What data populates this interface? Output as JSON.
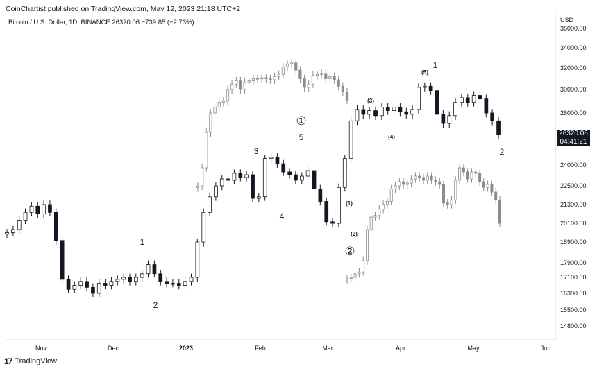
{
  "header": {
    "published": "CoinChartist published on TradingView.com, May 12, 2023 21:18 UTC+2",
    "symbol_line": "Bitcoin / U.S. Dollar, 1D, BINANCE  26320.06  −739.85 (−2.73%)"
  },
  "branding": {
    "logo_text": "TradingView",
    "logo_icon": "tradingview-logo-icon"
  },
  "price_badge": {
    "price": "26320.06",
    "countdown": "04:41:21"
  },
  "colors": {
    "candle": "#131722",
    "fractal": "#8c8c8c",
    "axis_text": "#131722",
    "grid": "#e6e6e6"
  },
  "chart_data": {
    "type": "candlestick",
    "title": "Bitcoin / U.S. Dollar, 1D, BINANCE",
    "currency_label": "USD",
    "y_ticks": [
      "36000.00",
      "34000.00",
      "32000.00",
      "30000.00",
      "28000.00",
      "24000.00",
      "22500.00",
      "21300.00",
      "20100.00",
      "18900.00",
      "17900.00",
      "17100.00",
      "16300.00",
      "15500.00",
      "14800.00"
    ],
    "x_ticks": [
      "Nov",
      "Dec",
      "2023",
      "Feb",
      "Mar",
      "Apr",
      "May",
      "Jun"
    ],
    "main_series": {
      "name": "BTCUSD daily",
      "closes_approx": [
        19500,
        19700,
        20300,
        20800,
        21200,
        20700,
        21300,
        20800,
        19000,
        17000,
        16500,
        16700,
        16900,
        16600,
        16300,
        16800,
        16700,
        16900,
        17000,
        17100,
        16900,
        17100,
        17300,
        17800,
        17300,
        16900,
        16800,
        16800,
        16700,
        16900,
        17100,
        18900,
        20800,
        21800,
        22500,
        23000,
        22900,
        23400,
        23100,
        23300,
        21700,
        21800,
        24500,
        24600,
        24100,
        23500,
        23300,
        22900,
        23200,
        23600,
        22300,
        21500,
        20200,
        20100,
        22400,
        24500,
        27400,
        28300,
        27900,
        28200,
        27800,
        28500,
        28200,
        28500,
        28100,
        27900,
        28300,
        30200,
        30300,
        29900,
        27900,
        27200,
        27800,
        28900,
        29300,
        28900,
        29500,
        29200,
        28000,
        27400,
        26320
      ]
    },
    "fractal_1": {
      "label": "①",
      "closes_approx": [
        22500,
        23800,
        26500,
        28000,
        28500,
        28900,
        29000,
        30000,
        30500,
        30800,
        30000,
        30700,
        30800,
        31000,
        31000,
        31100,
        31000,
        30900,
        31200,
        31400,
        32100,
        32400,
        32500,
        31800,
        31000,
        30200,
        30500,
        31300,
        31400,
        31500,
        31000,
        31200,
        30900,
        30300,
        29800,
        29100
      ]
    },
    "fractal_2": {
      "label": "②",
      "closes_approx": [
        17050,
        17100,
        17300,
        17400,
        18000,
        19700,
        20500,
        20600,
        21000,
        21300,
        21500,
        22300,
        22500,
        22800,
        22600,
        22700,
        23000,
        23200,
        23100,
        22900,
        23200,
        22900,
        22800,
        22600,
        21400,
        21300,
        21600,
        22900,
        23800,
        23500,
        23000,
        23500,
        23400,
        22800,
        22400,
        22600,
        22100,
        21600,
        20100
      ]
    },
    "wave_labels": [
      {
        "text": "1",
        "date": "Dec 14",
        "price": 18900
      },
      {
        "text": "2",
        "date": "Dec 19",
        "price": 15700
      },
      {
        "text": "3",
        "date": "Jan 29",
        "price": 24700
      },
      {
        "text": "4",
        "date": "Feb 8",
        "price": 21200
      },
      {
        "text": "5",
        "date": "Feb 20",
        "price": 25200
      },
      {
        "text": "(1)",
        "date": "Mar 11",
        "price": 21300
      },
      {
        "text": "(2)",
        "date": "Mar 12",
        "price": 19600
      },
      {
        "text": "(3)",
        "date": "Mar 22",
        "price": 28500
      },
      {
        "text": "(4)",
        "date": "Mar 29",
        "price": 27300
      },
      {
        "text": "(5)",
        "date": "Apr 12",
        "price": 30900
      },
      {
        "text": "1",
        "date": "Apr 16",
        "price": 31600
      },
      {
        "text": "2",
        "date": "May 14",
        "price": 24700
      }
    ]
  }
}
